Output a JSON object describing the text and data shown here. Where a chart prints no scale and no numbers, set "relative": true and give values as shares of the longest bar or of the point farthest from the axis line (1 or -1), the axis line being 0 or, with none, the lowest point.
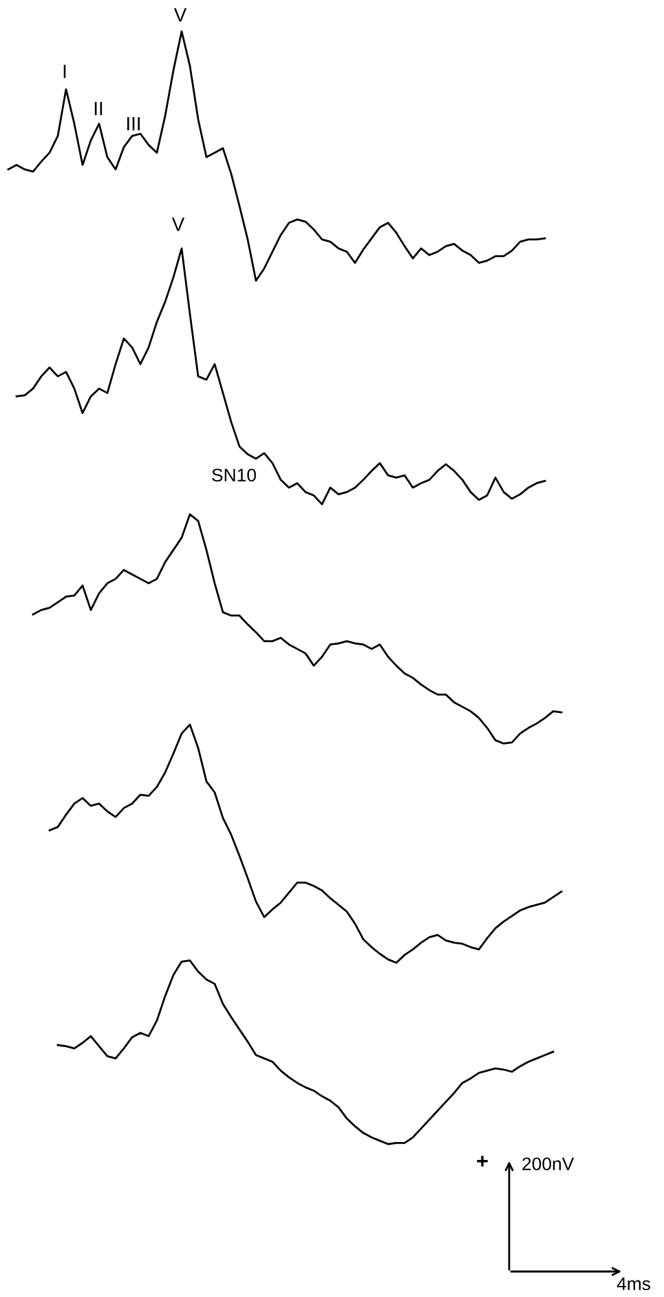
{
  "chart_data": {
    "type": "line",
    "relative": true,
    "categories": [
      null,
      null,
      null,
      null,
      null,
      null,
      null,
      null,
      null,
      null,
      null,
      null,
      null,
      null,
      null,
      null,
      null,
      null,
      null,
      null,
      null,
      null,
      null,
      null,
      null,
      null,
      null,
      null,
      null,
      null,
      null,
      null,
      null,
      null,
      null,
      null,
      null,
      null,
      null,
      null,
      null,
      null,
      null,
      null,
      null,
      null,
      null,
      null,
      null,
      null,
      null,
      null,
      null,
      null,
      null,
      null,
      null,
      null,
      null,
      null,
      null,
      null,
      null,
      null,
      null,
      null,
      null,
      null
    ],
    "series": [
      {
        "color": "#000000",
        "values": [
          0.876,
          0.88,
          0.876,
          0.874,
          0.883,
          0.891,
          0.906,
          0.948,
          0.917,
          0.88,
          0.902,
          0.917,
          0.887,
          0.876,
          0.896,
          0.906,
          0.908,
          0.898,
          0.891,
          0.924,
          0.965,
          1.0,
          0.969,
          0.921,
          0.887,
          0.891,
          0.895,
          0.872,
          0.843,
          0.813,
          0.776,
          0.787,
          0.802,
          0.817,
          0.828,
          0.831,
          0.829,
          0.822,
          0.813,
          0.811,
          0.805,
          0.802,
          0.792,
          0.804,
          0.814,
          0.824,
          0.828,
          0.819,
          0.807,
          0.796,
          0.805,
          0.799,
          0.802,
          0.807,
          0.809,
          0.803,
          0.799,
          0.792,
          0.794,
          0.798,
          0.798,
          0.803,
          0.811,
          0.813,
          0.813,
          0.814,
          null,
          null
        ]
      },
      {
        "color": "#000000",
        "values": [
          null,
          0.672,
          0.673,
          0.679,
          0.69,
          0.698,
          0.69,
          0.694,
          0.679,
          0.657,
          0.672,
          0.679,
          0.675,
          0.701,
          0.724,
          0.716,
          0.701,
          0.716,
          0.739,
          0.757,
          0.779,
          0.805,
          0.746,
          0.69,
          0.687,
          0.701,
          0.675,
          0.649,
          0.627,
          0.62,
          0.616,
          0.621,
          0.612,
          0.597,
          0.59,
          0.594,
          0.586,
          0.583,
          0.575,
          0.59,
          0.584,
          0.586,
          0.59,
          0.597,
          0.605,
          0.612,
          0.601,
          0.599,
          0.601,
          0.59,
          0.594,
          0.597,
          0.605,
          0.611,
          0.605,
          0.597,
          0.586,
          0.579,
          0.583,
          0.599,
          0.586,
          0.58,
          0.584,
          0.59,
          0.594,
          0.596,
          null,
          null
        ]
      },
      {
        "color": "#000000",
        "values": [
          null,
          null,
          null,
          0.476,
          0.48,
          0.482,
          0.487,
          0.492,
          0.493,
          0.502,
          0.48,
          0.495,
          0.504,
          0.508,
          0.516,
          0.512,
          0.508,
          0.504,
          0.508,
          0.523,
          0.534,
          0.545,
          0.566,
          0.56,
          0.534,
          0.504,
          0.478,
          0.475,
          0.475,
          0.467,
          0.46,
          0.452,
          0.452,
          0.455,
          0.449,
          0.445,
          0.441,
          0.43,
          0.438,
          0.449,
          0.45,
          0.452,
          0.45,
          0.449,
          0.445,
          0.449,
          0.438,
          0.43,
          0.423,
          0.419,
          0.413,
          0.408,
          0.404,
          0.404,
          0.397,
          0.393,
          0.389,
          0.383,
          0.374,
          0.363,
          0.36,
          0.361,
          0.369,
          0.374,
          0.378,
          0.383,
          0.389,
          0.388
        ]
      },
      {
        "color": "#000000",
        "values": [
          null,
          null,
          null,
          null,
          null,
          0.282,
          0.285,
          0.296,
          0.306,
          0.311,
          0.304,
          0.306,
          0.299,
          0.294,
          0.302,
          0.306,
          0.314,
          0.313,
          0.321,
          0.334,
          0.351,
          0.369,
          0.377,
          0.356,
          0.326,
          0.316,
          0.293,
          0.278,
          0.259,
          0.239,
          0.218,
          0.204,
          0.211,
          0.217,
          0.226,
          0.235,
          0.235,
          0.232,
          0.228,
          0.221,
          0.215,
          0.209,
          0.198,
          0.184,
          0.177,
          0.171,
          0.166,
          0.163,
          0.17,
          0.175,
          0.181,
          0.186,
          0.188,
          0.183,
          0.181,
          0.18,
          0.177,
          0.175,
          0.185,
          0.194,
          0.2,
          0.205,
          0.21,
          0.213,
          0.215,
          0.217,
          0.222,
          0.227
        ]
      },
      {
        "color": "#000000",
        "values": [
          null,
          null,
          null,
          null,
          null,
          null,
          0.089,
          0.088,
          0.086,
          0.091,
          0.097,
          0.088,
          0.079,
          0.077,
          0.086,
          0.096,
          0.1,
          0.097,
          0.111,
          0.133,
          0.152,
          0.164,
          0.165,
          0.155,
          0.148,
          0.144,
          0.126,
          0.114,
          0.103,
          0.092,
          0.08,
          0.077,
          0.074,
          0.066,
          0.06,
          0.055,
          0.051,
          0.048,
          0.043,
          0.039,
          0.033,
          0.023,
          0.016,
          0.01,
          0.006,
          0.003,
          0,
          0.001,
          0.001,
          0.006,
          0.014,
          0.022,
          0.03,
          0.038,
          0.046,
          0.055,
          0.059,
          0.064,
          0.066,
          0.068,
          0.067,
          0.065,
          0.07,
          0.074,
          0.077,
          0.08,
          0.083,
          null
        ]
      }
    ],
    "annotations": [
      "I",
      "II",
      "III",
      "V",
      "V",
      "SN10",
      "+",
      "200nV",
      "4ms"
    ]
  }
}
